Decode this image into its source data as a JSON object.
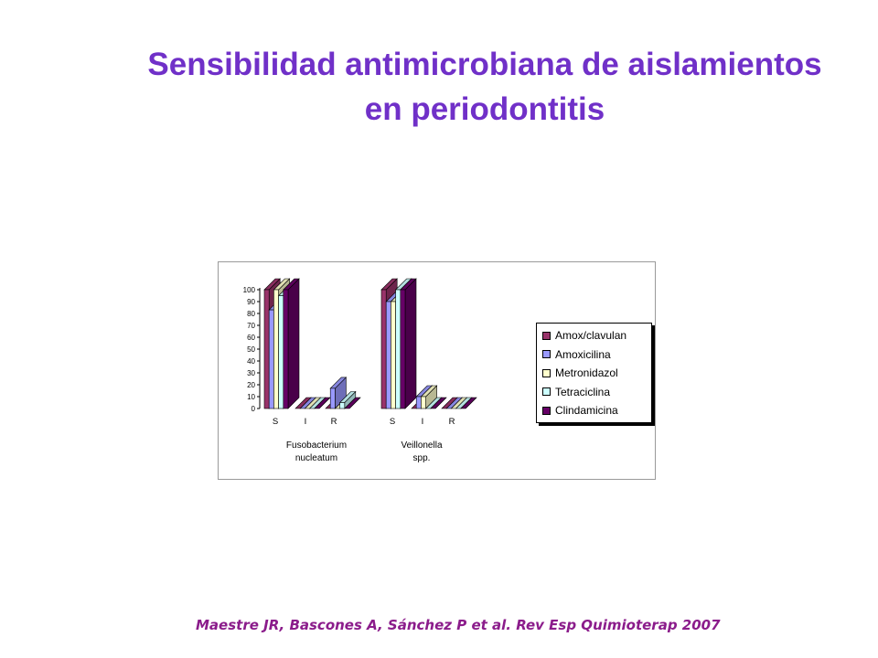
{
  "title": {
    "line1": "Sensibilidad antimicrobiana de aislamientos",
    "line2": "en periodontitis"
  },
  "citation": "Maestre JR, Bascones A, Sánchez P et al. Rev Esp Quimioterap  2007",
  "chart_data": {
    "type": "bar",
    "subtype": "3d-clustered",
    "ylim": [
      0,
      100
    ],
    "yticks": [
      0,
      10,
      20,
      30,
      40,
      50,
      60,
      70,
      80,
      90,
      100
    ],
    "groups": [
      {
        "label_lines": [
          "Fusobacterium",
          "nucleatum"
        ],
        "categories": [
          "S",
          "I",
          "R"
        ]
      },
      {
        "label_lines": [
          "Veillonella",
          "spp."
        ],
        "categories": [
          "S",
          "I",
          "R"
        ]
      }
    ],
    "series": [
      {
        "name": "Amox/clavulan",
        "color": "#99336a",
        "values": [
          100,
          0,
          0,
          100,
          0,
          0
        ]
      },
      {
        "name": "Amoxicilina",
        "color": "#9999ff",
        "values": [
          83,
          0,
          17,
          90,
          10,
          0
        ]
      },
      {
        "name": "Metronidazol",
        "color": "#ffffcc",
        "values": [
          100,
          0,
          0,
          90,
          10,
          0
        ]
      },
      {
        "name": "Tetraciclina",
        "color": "#ccffff",
        "values": [
          95,
          0,
          5,
          100,
          0,
          0
        ]
      },
      {
        "name": "Clindamicina",
        "color": "#660066",
        "values": [
          100,
          0,
          0,
          100,
          0,
          0
        ]
      }
    ],
    "legend_position": "right",
    "grid": false
  }
}
